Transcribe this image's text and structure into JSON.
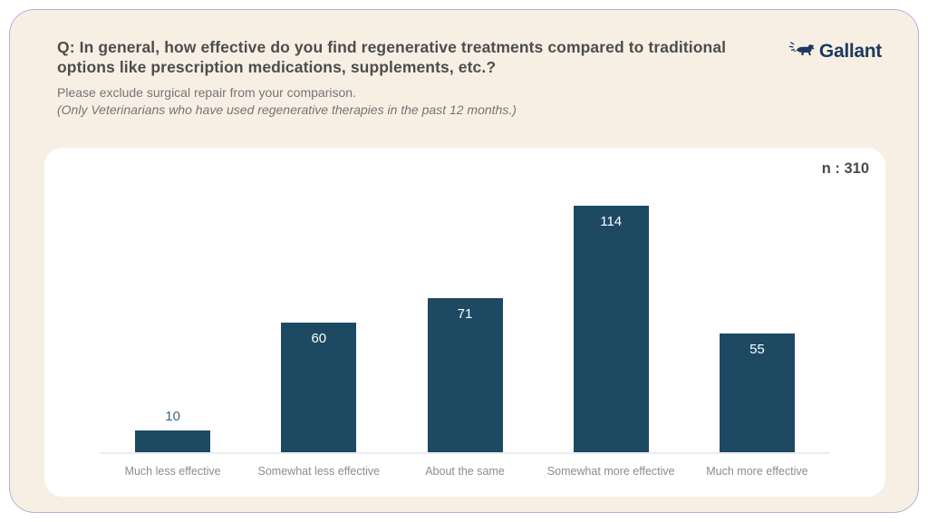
{
  "header": {
    "title": "Q: In general, how effective do you find regenerative treatments compared to traditional options like prescription medications, supplements, etc.?",
    "subtitle": "Please exclude surgical repair from your comparison.",
    "note": "(Only Veterinarians who have used regenerative therapies in the past 12 months.)",
    "logo_text": "Gallant"
  },
  "panel": {
    "sample_size_label": "n : 310"
  },
  "chart_data": {
    "type": "bar",
    "categories": [
      "Much less effective",
      "Somewhat less effective",
      "About the same",
      "Somewhat more effective",
      "Much more effective"
    ],
    "values": [
      10,
      60,
      71,
      114,
      55
    ],
    "title": "",
    "xlabel": "",
    "ylabel": "",
    "ylim": [
      0,
      120
    ],
    "grid": false,
    "legend": false,
    "sample_size": 310,
    "bar_color": "#1d4963",
    "value_label_inside_color": "#ffffff",
    "value_label_outside_color": "#3e648a"
  },
  "colors": {
    "card_background": "#f8efe4",
    "card_border": "#b4aed8",
    "panel_background": "#ffffff",
    "bar": "#1d4963",
    "logo_navy": "#1d3a60",
    "title_text": "#4d4d4d",
    "muted_text": "#747474",
    "axis_line": "#ececec",
    "category_text": "#8c8c8c"
  }
}
